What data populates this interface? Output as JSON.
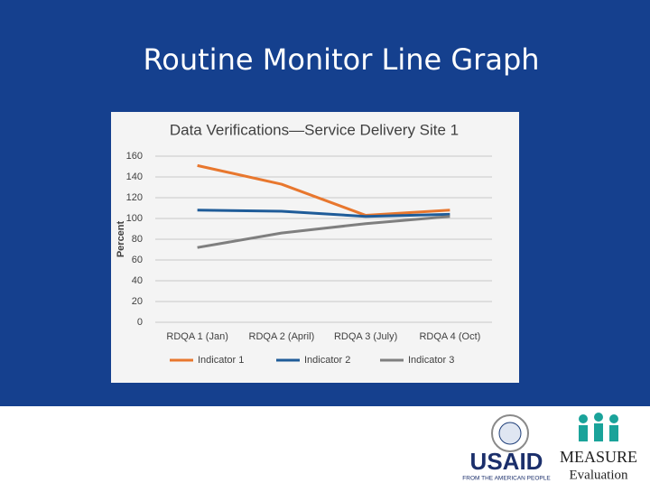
{
  "slide_title": "Routine Monitor Line Graph",
  "chart_data": {
    "type": "line",
    "title": "Data Verifications—Service  Delivery Site 1",
    "y_label": "Percent",
    "categories": [
      "RDQA 1 (Jan)",
      "RDQA 2 (April)",
      "RDQA 3 (July)",
      "RDQA 4 (Oct)"
    ],
    "series": [
      {
        "name": "Indicator 1",
        "color": "#e8772e",
        "values": [
          151,
          133,
          103,
          108
        ]
      },
      {
        "name": "Indicator 2",
        "color": "#1f5c99",
        "values": [
          108,
          107,
          102,
          104
        ]
      },
      {
        "name": "Indicator 3",
        "color": "#7f7f7f",
        "values": [
          72,
          86,
          95,
          102
        ]
      }
    ],
    "ylim": [
      0,
      160
    ],
    "yticks": [
      0,
      20,
      40,
      60,
      80,
      100,
      120,
      140,
      160
    ],
    "grid": true,
    "legend": "bottom"
  },
  "logos": {
    "usaid": "USAID",
    "usaid_tagline": "FROM THE AMERICAN PEOPLE",
    "measure": "MEASURE",
    "evaluation": "Evaluation"
  }
}
